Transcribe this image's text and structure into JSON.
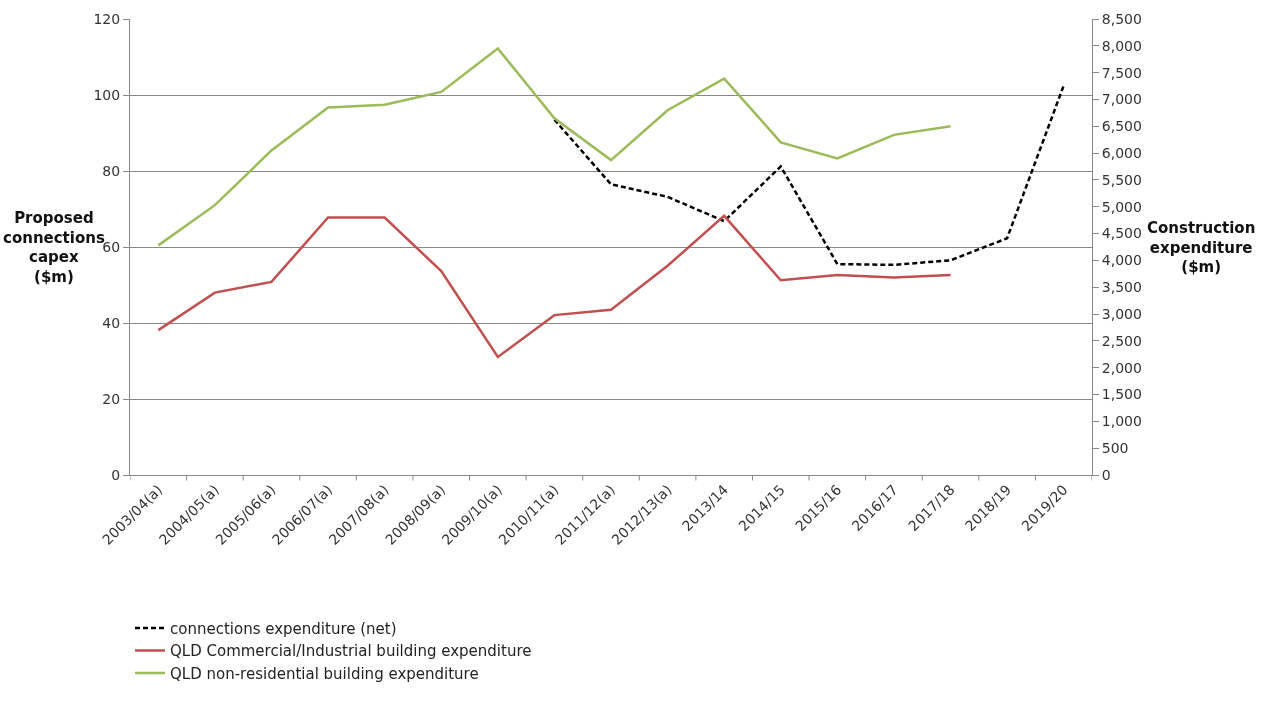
{
  "chart_data": {
    "type": "line",
    "categories": [
      "2003/04(a)",
      "2004/05(a)",
      "2005/06(a)",
      "2006/07(a)",
      "2007/08(a)",
      "2008/09(a)",
      "2009/10(a)",
      "2010/11(a)",
      "2011/12(a)",
      "2012/13(a)",
      "2013/14",
      "2014/15",
      "2015/16",
      "2016/17",
      "2017/18",
      "2018/19",
      "2019/20"
    ],
    "ylabel": "Proposed connections capex ($m)",
    "y2label": "Construction expenditure ($m)",
    "series": [
      {
        "name": "connections expenditure (net)",
        "color": "#000000",
        "line_style": "dashed",
        "values": [
          null,
          null,
          null,
          null,
          null,
          null,
          null,
          93.5,
          76.5,
          73.2,
          66.8,
          81.2,
          55.5,
          55.3,
          56.5,
          62.3,
          102.5
        ]
      },
      {
        "name": "QLD Commercial/Industrial building expenditure",
        "color": "#c0504d",
        "line_style": "solid",
        "axis": "y2",
        "values": [
          2700,
          3400,
          3600,
          4800,
          4800,
          3800,
          2200,
          2980,
          3080,
          3900,
          4830,
          3630,
          3730,
          3680,
          3730,
          null,
          null
        ]
      },
      {
        "name": "QLD non-residential building expenditure",
        "color": "#9bbb59",
        "line_style": "solid",
        "axis": "y2",
        "values": [
          4280,
          5030,
          6050,
          6850,
          6900,
          7140,
          7950,
          6650,
          5870,
          6800,
          7390,
          6200,
          5900,
          6340,
          6500,
          null,
          null
        ]
      }
    ],
    "ylim": [
      0,
      120
    ],
    "yticks": [
      0,
      20,
      40,
      60,
      80,
      100,
      120
    ],
    "y2lim": [
      0,
      8500
    ],
    "y2ticks": [
      {
        "value": 0,
        "label": "0"
      },
      {
        "value": 500,
        "label": "500"
      },
      {
        "value": 1000,
        "label": "1,000"
      },
      {
        "value": 1500,
        "label": "1,500"
      },
      {
        "value": 2000,
        "label": "2,000"
      },
      {
        "value": 2500,
        "label": "2,500"
      },
      {
        "value": 3000,
        "label": "3,000"
      },
      {
        "value": 3500,
        "label": "3,500"
      },
      {
        "value": 4000,
        "label": "4,000"
      },
      {
        "value": 4500,
        "label": "4,500"
      },
      {
        "value": 5000,
        "label": "5,000"
      },
      {
        "value": 5500,
        "label": "5,500"
      },
      {
        "value": 6000,
        "label": "6,000"
      },
      {
        "value": 6500,
        "label": "6,500"
      },
      {
        "value": 7000,
        "label": "7,000"
      },
      {
        "value": 7500,
        "label": "7,500"
      },
      {
        "value": 8000,
        "label": "8,000"
      },
      {
        "value": 8500,
        "label": "8,500"
      }
    ],
    "grid": "y",
    "legend": "bottom",
    "marker": "none"
  }
}
